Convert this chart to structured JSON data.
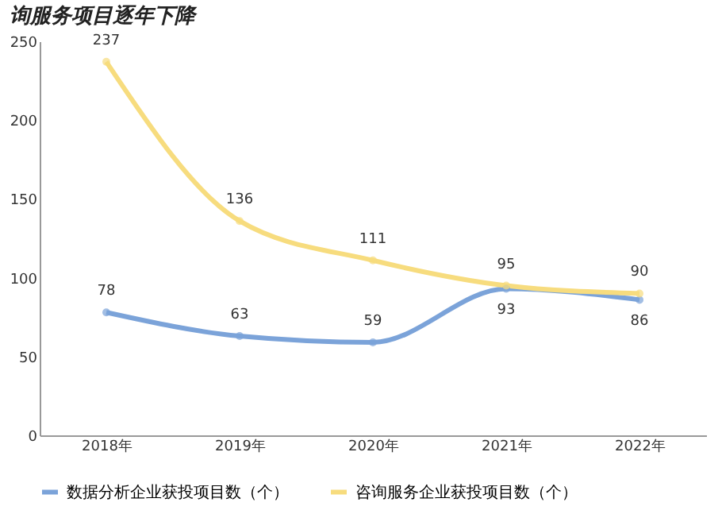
{
  "chart_data": {
    "type": "line",
    "title": "询服务项目逐年下降",
    "categories": [
      "2018年",
      "2019年",
      "2020年",
      "2021年",
      "2022年"
    ],
    "series": [
      {
        "name": "数据分析企业获投项目数（个）",
        "color": "#7ba3d9",
        "values": [
          78,
          63,
          59,
          93,
          86
        ]
      },
      {
        "name": "咨询服务企业获投项目数（个）",
        "color": "#f7dc7e",
        "values": [
          237,
          136,
          111,
          95,
          90
        ]
      }
    ],
    "ylim": [
      0,
      250
    ],
    "yticks": [
      0,
      50,
      100,
      150,
      200,
      250
    ],
    "grid": false,
    "legend": "bottom",
    "marker": "circle",
    "line_style": "solid",
    "data_labels": true
  }
}
